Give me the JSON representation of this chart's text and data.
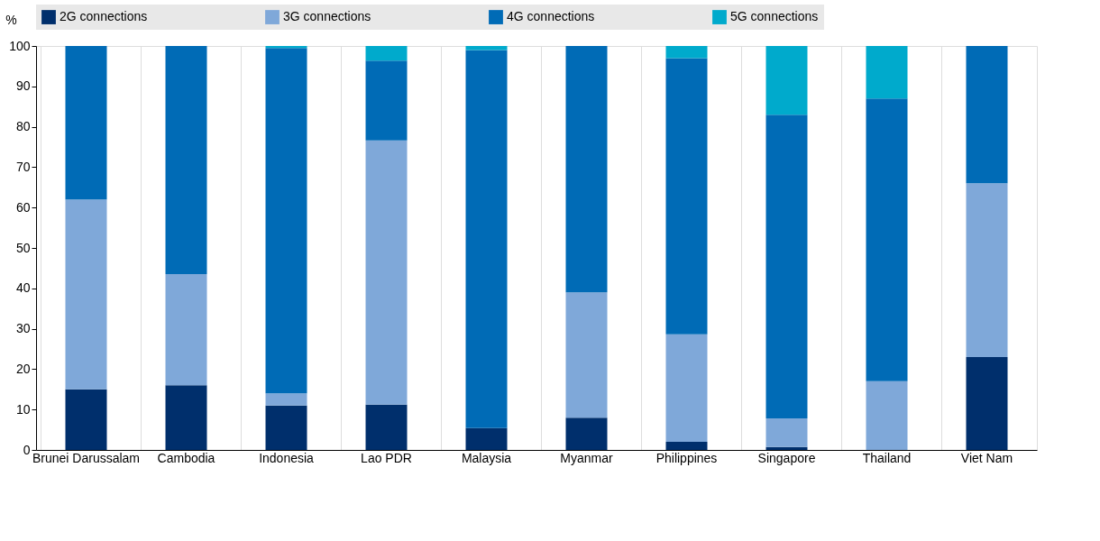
{
  "chart_data": {
    "type": "bar",
    "stacked": true,
    "ylabel": "%",
    "categories": [
      "Brunei Darussalam",
      "Cambodia",
      "Indonesia",
      "Lao PDR",
      "Malaysia",
      "Myanmar",
      "Philippines",
      "Singapore",
      "Thailand",
      "Viet Nam"
    ],
    "series": [
      {
        "name": "2G connections",
        "color": "#002f6c",
        "values": [
          15,
          16,
          11,
          11.2,
          5.4,
          8,
          2,
          0.7,
          0,
          23
        ]
      },
      {
        "name": "3G connections",
        "color": "#7fa8d9",
        "values": [
          47,
          27.5,
          3,
          65.4,
          0,
          31,
          26.6,
          7.1,
          17,
          43
        ]
      },
      {
        "name": "4G connections",
        "color": "#006bb6",
        "values": [
          38,
          56.5,
          85.5,
          19.8,
          93.6,
          61,
          68.4,
          75.2,
          70,
          34
        ]
      },
      {
        "name": "5G connections",
        "color": "#00aacc",
        "values": [
          0,
          0,
          0.5,
          3.6,
          1,
          0,
          3,
          17,
          13,
          0
        ]
      }
    ],
    "ylim": [
      0,
      100
    ],
    "yticks": [
      0,
      10,
      20,
      30,
      40,
      50,
      60,
      70,
      80,
      90,
      100
    ],
    "grid": "x",
    "legend": "top"
  }
}
